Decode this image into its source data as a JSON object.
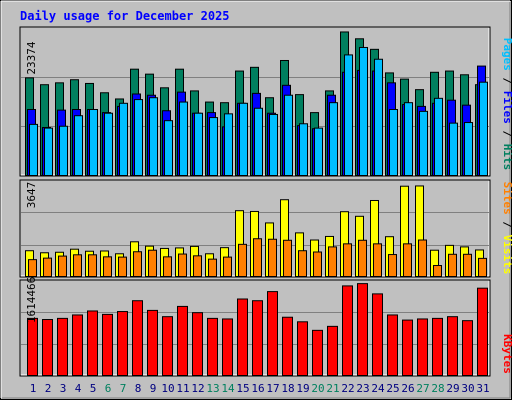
{
  "title": "Daily usage for December 2025",
  "colors": {
    "background": "#c0c0c0",
    "title": "#0000ff",
    "hits": "#007f5f",
    "files": "#0000ff",
    "pages": "#00bfff",
    "visits": "#ffff00",
    "sites": "#ff8000",
    "kbytes": "#ff0000",
    "weekend_day": "#00805f",
    "weekday": "#000080"
  },
  "chart_data": [
    {
      "type": "bar",
      "panel": "hits-files-pages",
      "x": [
        1,
        2,
        3,
        4,
        5,
        6,
        7,
        8,
        9,
        10,
        11,
        12,
        13,
        14,
        15,
        16,
        17,
        18,
        19,
        20,
        21,
        22,
        23,
        24,
        25,
        26,
        27,
        28,
        29,
        30,
        31
      ],
      "ymax_label": "23374",
      "ylim": [
        0,
        23374
      ],
      "legend": [
        "Pages",
        "Files",
        "Hits"
      ],
      "series": [
        {
          "name": "Hits",
          "values": [
            15900,
            14800,
            15100,
            15600,
            15000,
            13500,
            12500,
            17300,
            16500,
            14300,
            17300,
            13800,
            12000,
            11900,
            17000,
            17600,
            12700,
            18700,
            13200,
            10300,
            13800,
            23300,
            22200,
            20500,
            16700,
            15700,
            14000,
            16800,
            17000,
            16400,
            14800
          ]
        },
        {
          "name": "Files",
          "values": [
            10800,
            7900,
            10700,
            10800,
            10800,
            10300,
            11300,
            13300,
            13100,
            10600,
            13600,
            10200,
            10300,
            8000,
            11800,
            13400,
            10200,
            14700,
            8200,
            7700,
            13100,
            16800,
            17100,
            17000,
            15100,
            11600,
            11300,
            11800,
            12300,
            11500,
            17800
          ]
        },
        {
          "name": "Pages",
          "values": [
            8400,
            7800,
            8100,
            9800,
            10800,
            10200,
            11800,
            12400,
            12700,
            9000,
            12000,
            10200,
            9500,
            10100,
            11800,
            11000,
            10000,
            13100,
            8500,
            7800,
            11900,
            19600,
            20800,
            18900,
            10800,
            11900,
            10500,
            12600,
            8600,
            8700,
            15200
          ]
        }
      ]
    },
    {
      "type": "bar",
      "panel": "visits-sites",
      "x": [
        1,
        2,
        3,
        4,
        5,
        6,
        7,
        8,
        9,
        10,
        11,
        12,
        13,
        14,
        15,
        16,
        17,
        18,
        19,
        20,
        21,
        22,
        23,
        24,
        25,
        26,
        27,
        28,
        29,
        30,
        31
      ],
      "ymax_label": "3647",
      "ylim": [
        0,
        3647
      ],
      "legend": [
        "Sites",
        "Visits"
      ],
      "series": [
        {
          "name": "Visits",
          "values": [
            1050,
            970,
            990,
            1110,
            1030,
            1040,
            930,
            1400,
            1230,
            1140,
            1160,
            1220,
            930,
            1170,
            2620,
            2590,
            2140,
            3050,
            1750,
            1470,
            1610,
            2580,
            2400,
            3020,
            1600,
            3580,
            3590,
            1070,
            1260,
            1200,
            1080
          ]
        },
        {
          "name": "Sites",
          "values": [
            700,
            760,
            840,
            890,
            890,
            810,
            800,
            1010,
            1070,
            810,
            920,
            850,
            720,
            800,
            1300,
            1520,
            1500,
            1460,
            1050,
            1000,
            1200,
            1320,
            1460,
            1320,
            900,
            1320,
            1470,
            470,
            910,
            910,
            750
          ]
        }
      ]
    },
    {
      "type": "bar",
      "panel": "kbytes",
      "x": [
        1,
        2,
        3,
        4,
        5,
        6,
        7,
        8,
        9,
        10,
        11,
        12,
        13,
        14,
        15,
        16,
        17,
        18,
        19,
        20,
        21,
        22,
        23,
        24,
        25,
        26,
        27,
        28,
        29,
        30,
        31
      ],
      "ymax_label": "1614466",
      "ylim": [
        0,
        1614466
      ],
      "legend": [
        "KBytes"
      ],
      "series": [
        {
          "name": "KBytes",
          "values": [
            1020000,
            1000000,
            1020000,
            1080000,
            1150000,
            1090000,
            1140000,
            1330000,
            1160000,
            1050000,
            1230000,
            1120000,
            1020000,
            1010000,
            1360000,
            1330000,
            1490000,
            1040000,
            960000,
            810000,
            880000,
            1590000,
            1630000,
            1450000,
            1080000,
            990000,
            1010000,
            1020000,
            1050000,
            980000,
            1550000
          ]
        }
      ]
    }
  ],
  "x_labels": [
    "1",
    "2",
    "3",
    "4",
    "5",
    "6",
    "7",
    "8",
    "9",
    "10",
    "11",
    "12",
    "13",
    "14",
    "15",
    "16",
    "17",
    "18",
    "19",
    "20",
    "21",
    "22",
    "23",
    "24",
    "25",
    "26",
    "27",
    "28",
    "29",
    "30",
    "31"
  ],
  "weekend_days": [
    6,
    7,
    13,
    14,
    20,
    21,
    27,
    28
  ],
  "legends": {
    "top": {
      "pages": "Pages",
      "sep1": " / ",
      "files": "Files",
      "sep2": " / ",
      "hits": "Hits"
    },
    "middle": {
      "sites": "Sites",
      "sep1": " / ",
      "visits": "Visits"
    },
    "bottom": {
      "kbytes": "KBytes"
    }
  }
}
